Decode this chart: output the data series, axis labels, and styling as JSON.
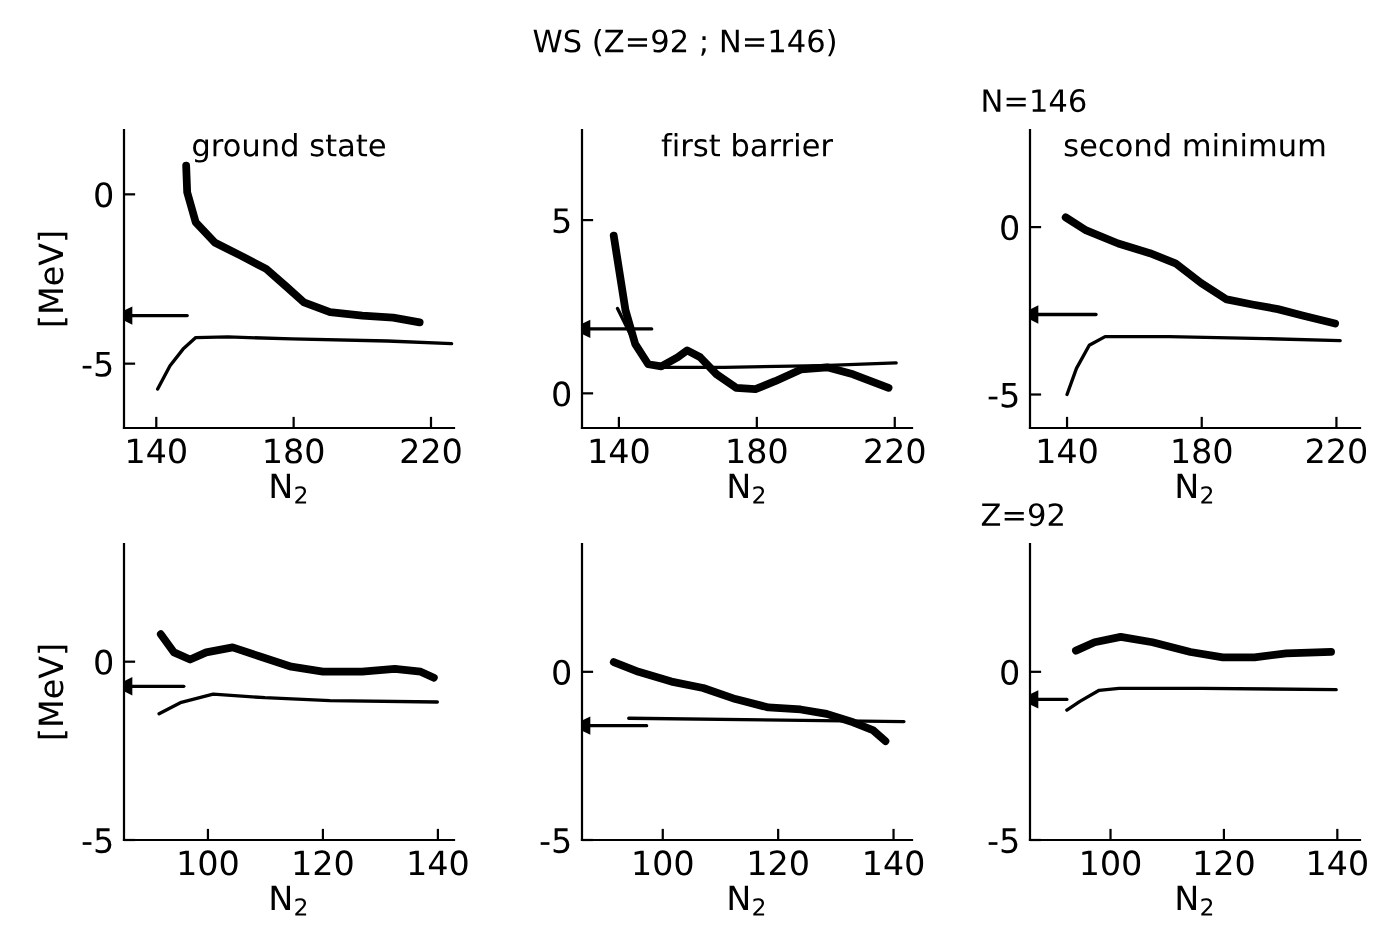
{
  "chart_data": [
    {
      "type": "line",
      "title": "ground state",
      "xlabel": "N$_{2}$",
      "ylabel": "[MeV]",
      "xlim": [
        130.6,
        226.7
      ],
      "ylim": [
        -6.9,
        1.9
      ],
      "xticks": [
        140,
        180,
        220
      ],
      "yticks": [
        -5,
        0
      ],
      "grid": false,
      "legend": false,
      "series": [
        {
          "color": "#000000",
          "x": [
            148.7,
            149,
            151.5,
            157,
            164.6,
            172,
            177.6,
            183,
            190.6,
            200,
            209,
            216.7
          ],
          "values": [
            0.85,
            0.06,
            -0.83,
            -1.42,
            -1.81,
            -2.2,
            -2.7,
            -3.19,
            -3.48,
            -3.58,
            -3.64,
            -3.78
          ]
        },
        {
          "color": "#000000",
          "x": [
            140.4,
            144,
            147.8,
            151.5,
            160.8,
            179.4,
            207.3,
            226
          ],
          "values": [
            -5.75,
            -5.06,
            -4.57,
            -4.23,
            -4.21,
            -4.27,
            -4.33,
            -4.41
          ]
        },
        {
          "color": "#000000",
          "marker": "triangle",
          "x": [
            130.6,
            149
          ],
          "values": [
            -3.58,
            -3.58
          ]
        }
      ]
    },
    {
      "type": "line",
      "title": "first barrier",
      "xlabel": "N$_{2}$",
      "annotations": [
        "WS (Z=92 ; N=146)"
      ],
      "xlim": [
        129.3,
        225
      ],
      "ylim": [
        -1,
        7.6
      ],
      "xticks": [
        140,
        180,
        220
      ],
      "yticks": [
        0,
        5
      ],
      "grid": false,
      "legend": false,
      "series": [
        {
          "color": "#000000",
          "x": [
            138.5,
            140,
            141.9,
            144.7,
            148.5,
            152.3,
            157,
            159.8,
            163.6,
            168.3,
            174,
            179.6,
            185.3,
            192.8,
            200.4,
            207.9,
            218.2
          ],
          "values": [
            4.55,
            3.6,
            2.4,
            1.43,
            0.84,
            0.78,
            1.04,
            1.24,
            1.04,
            0.55,
            0.16,
            0.12,
            0.35,
            0.69,
            0.75,
            0.55,
            0.16
          ]
        },
        {
          "color": "#000000",
          "x": [
            139.6,
            143.2,
            147,
            150.8,
            170.5,
            198.8,
            220.4
          ],
          "values": [
            2.45,
            1.73,
            1.04,
            0.75,
            0.75,
            0.8,
            0.88
          ]
        },
        {
          "color": "#000000",
          "marker": "triangle",
          "x": [
            129.3,
            149.5
          ],
          "values": [
            1.86,
            1.86
          ]
        }
      ]
    },
    {
      "type": "line",
      "title": "second minimum",
      "xlabel": "N$_{2}$",
      "annotations": [
        "N=146"
      ],
      "xlim": [
        129,
        227
      ],
      "ylim": [
        -6,
        2.9
      ],
      "xticks": [
        140,
        180,
        220
      ],
      "yticks": [
        -5,
        0
      ],
      "grid": false,
      "legend": false,
      "series": [
        {
          "color": "#000000",
          "x": [
            139.6,
            145.7,
            155.2,
            164.6,
            172.2,
            179.8,
            187.4,
            195,
            202.6,
            210.2,
            219.6
          ],
          "values": [
            0.29,
            -0.1,
            -0.49,
            -0.78,
            -1.08,
            -1.67,
            -2.16,
            -2.31,
            -2.45,
            -2.65,
            -2.88
          ]
        },
        {
          "color": "#000000",
          "x": [
            140,
            142.8,
            146.6,
            151.3,
            170.3,
            198.8,
            221.1
          ],
          "values": [
            -5,
            -4.22,
            -3.53,
            -3.27,
            -3.27,
            -3.33,
            -3.39
          ]
        },
        {
          "color": "#000000",
          "marker": "triangle",
          "x": [
            129,
            148.6
          ],
          "values": [
            -2.61,
            -2.61
          ]
        }
      ]
    },
    {
      "type": "line",
      "xlabel": "N$_{2}$",
      "ylabel": "[MeV]",
      "xlim": [
        85.4,
        142.8
      ],
      "ylim": [
        -5,
        3.3
      ],
      "xticks": [
        100,
        120,
        140
      ],
      "yticks": [
        -5,
        0
      ],
      "grid": false,
      "legend": false,
      "series": [
        {
          "color": "#000000",
          "x": [
            91.8,
            94.1,
            96.9,
            99.7,
            104.3,
            108.8,
            114.5,
            120,
            126.8,
            132.5,
            137,
            139.3
          ],
          "values": [
            0.77,
            0.26,
            0.06,
            0.26,
            0.4,
            0.16,
            -0.14,
            -0.28,
            -0.28,
            -0.2,
            -0.28,
            -0.45
          ]
        },
        {
          "color": "#000000",
          "x": [
            91.5,
            95.2,
            100.9,
            109.9,
            121.2,
            139.9
          ],
          "values": [
            -1.46,
            -1.15,
            -0.91,
            -1.01,
            -1.09,
            -1.13
          ]
        },
        {
          "color": "#000000",
          "marker": "triangle",
          "x": [
            85.4,
            95.8
          ],
          "values": [
            -0.69,
            -0.69
          ]
        }
      ]
    },
    {
      "type": "line",
      "xlabel": "N$_{2}$",
      "xlim": [
        86,
        143.2
      ],
      "ylim": [
        -5,
        3.8
      ],
      "xticks": [
        100,
        120,
        140
      ],
      "yticks": [
        -5,
        0
      ],
      "grid": false,
      "legend": false,
      "series": [
        {
          "color": "#000000",
          "x": [
            91.5,
            95.8,
            101.5,
            107,
            112.6,
            118.3,
            123.9,
            128.4,
            133,
            136.4,
            138.6
          ],
          "values": [
            0.29,
            0,
            -0.29,
            -0.48,
            -0.81,
            -1.06,
            -1.12,
            -1.25,
            -1.5,
            -1.73,
            -2.06
          ]
        },
        {
          "color": "#000000",
          "x": [
            94.1,
            141.8
          ],
          "values": [
            -1.38,
            -1.48
          ]
        },
        {
          "color": "#000000",
          "marker": "triangle",
          "x": [
            86,
            97.2
          ],
          "values": [
            -1.6,
            -1.6
          ]
        }
      ]
    },
    {
      "type": "line",
      "xlabel": "N$_{2}$",
      "annotations": [
        "Z=92"
      ],
      "xlim": [
        85.8,
        144
      ],
      "ylim": [
        -5,
        3.8
      ],
      "xticks": [
        100,
        120,
        140
      ],
      "yticks": [
        -5,
        0
      ],
      "grid": false,
      "legend": false,
      "series": [
        {
          "color": "#000000",
          "x": [
            93.9,
            97.2,
            101.8,
            107.4,
            114.1,
            119.8,
            125.4,
            131,
            138.9
          ],
          "values": [
            0.63,
            0.88,
            1.04,
            0.88,
            0.59,
            0.43,
            0.43,
            0.55,
            0.59
          ]
        },
        {
          "color": "#000000",
          "x": [
            92.3,
            94.6,
            98,
            101.5,
            116.1,
            139.8
          ],
          "values": [
            -1.14,
            -0.88,
            -0.55,
            -0.49,
            -0.49,
            -0.53
          ]
        },
        {
          "color": "#000000",
          "marker": "triangle",
          "x": [
            85.8,
            92.3
          ],
          "values": [
            -0.82,
            -0.82
          ]
        }
      ]
    }
  ]
}
